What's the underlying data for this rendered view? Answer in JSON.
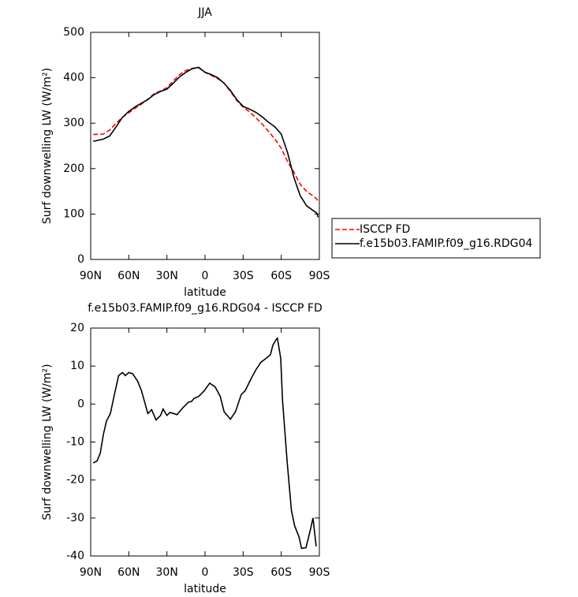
{
  "chart_data": [
    {
      "type": "line",
      "title": "JJA",
      "xlabel": "latitude",
      "ylabel": "Surf downwelling LW (W/m²)",
      "xlim": [
        90,
        -90
      ],
      "xticks": [
        {
          "value": 90,
          "label": "90N"
        },
        {
          "value": 60,
          "label": "60N"
        },
        {
          "value": 30,
          "label": "30N"
        },
        0,
        {
          "value": -30,
          "label": "30S"
        },
        {
          "value": -60,
          "label": "60S"
        },
        {
          "value": -90,
          "label": "90S"
        }
      ],
      "ylim": [
        0,
        500
      ],
      "yticks": [
        0,
        100,
        200,
        300,
        400,
        500
      ],
      "legend": "right",
      "series": [
        {
          "name": "ISCCP FD",
          "color": "#ff0000",
          "linestyle": "dashed",
          "x": [
            88,
            80,
            75,
            70,
            65,
            60,
            55,
            50,
            45,
            40,
            35,
            30,
            25,
            20,
            15,
            10,
            5,
            0,
            -5,
            -10,
            -15,
            -20,
            -25,
            -30,
            -35,
            -40,
            -45,
            -50,
            -55,
            -60,
            -65,
            -70,
            -75,
            -80,
            -85,
            -88,
            -89
          ],
          "values": [
            275,
            276,
            285,
            300,
            313,
            323,
            333,
            342,
            353,
            365,
            371,
            378,
            393,
            407,
            416,
            421,
            422,
            412,
            405,
            398,
            388,
            370,
            350,
            335,
            325,
            312,
            298,
            282,
            265,
            245,
            215,
            192,
            165,
            150,
            140,
            133,
            128
          ]
        },
        {
          "name": "f.e15b03.FAMIP.f09_g16.RDG04",
          "color": "#000000",
          "linestyle": "solid",
          "x": [
            88,
            80,
            75,
            70,
            65,
            60,
            55,
            50,
            45,
            40,
            35,
            30,
            25,
            20,
            15,
            10,
            5,
            0,
            -5,
            -10,
            -15,
            -20,
            -25,
            -30,
            -35,
            -40,
            -45,
            -50,
            -55,
            -60,
            -65,
            -70,
            -75,
            -80,
            -85,
            -88,
            -89
          ],
          "values": [
            260,
            265,
            272,
            292,
            313,
            326,
            336,
            344,
            352,
            363,
            370,
            375,
            388,
            402,
            412,
            420,
            423,
            412,
            407,
            400,
            388,
            372,
            352,
            337,
            331,
            324,
            314,
            302,
            292,
            276,
            235,
            180,
            140,
            118,
            108,
            102,
            93
          ]
        }
      ]
    },
    {
      "type": "line",
      "title": "f.e15b03.FAMIP.f09_g16.RDG04 - ISCCP FD",
      "xlabel": "latitude",
      "ylabel": "Surf downwelling LW (W/m²)",
      "xlim": [
        90,
        -90
      ],
      "xticks": [
        {
          "value": 90,
          "label": "90N"
        },
        {
          "value": 60,
          "label": "60N"
        },
        {
          "value": 30,
          "label": "30N"
        },
        0,
        {
          "value": -30,
          "label": "30S"
        },
        {
          "value": -60,
          "label": "60S"
        },
        {
          "value": -90,
          "label": "90S"
        }
      ],
      "ylim": [
        -40,
        20
      ],
      "yticks": [
        -40,
        -30,
        -20,
        -10,
        0,
        10,
        20
      ],
      "series": [
        {
          "color": "#000000",
          "linestyle": "solid",
          "x": [
            88,
            85,
            82.5,
            80,
            77.6,
            74.5,
            71,
            68,
            65,
            62.7,
            60,
            57,
            53,
            50,
            45,
            42,
            38.5,
            35,
            33,
            30,
            27.5,
            22,
            17.5,
            13,
            10.5,
            8.7,
            5,
            0.6,
            -3.7,
            -8,
            -12,
            -15,
            -20,
            -24,
            -28.5,
            -31.6,
            -36,
            -40,
            -44,
            -48,
            -51.5,
            -53.4,
            -56,
            -57,
            -59.6,
            -61,
            -64.6,
            -68,
            -70.5,
            -74,
            -76,
            -79.5,
            -83,
            -85,
            -87.5
          ],
          "values": [
            -15.5,
            -15,
            -13,
            -8,
            -4.5,
            -2.5,
            3,
            7.5,
            8.3,
            7.5,
            8.3,
            8,
            6,
            3.5,
            -2.5,
            -1.5,
            -4.2,
            -3,
            -1.3,
            -3,
            -2.2,
            -2.8,
            -1,
            0.5,
            0.7,
            1.5,
            2,
            3.5,
            5.5,
            4.5,
            2,
            -2,
            -4,
            -2,
            2.5,
            3.5,
            6.5,
            9,
            11,
            12,
            13,
            15.5,
            17,
            17.3,
            12,
            1,
            -15,
            -28,
            -32,
            -35,
            -38,
            -37.8,
            -33,
            -30,
            -37.5
          ]
        }
      ]
    }
  ]
}
